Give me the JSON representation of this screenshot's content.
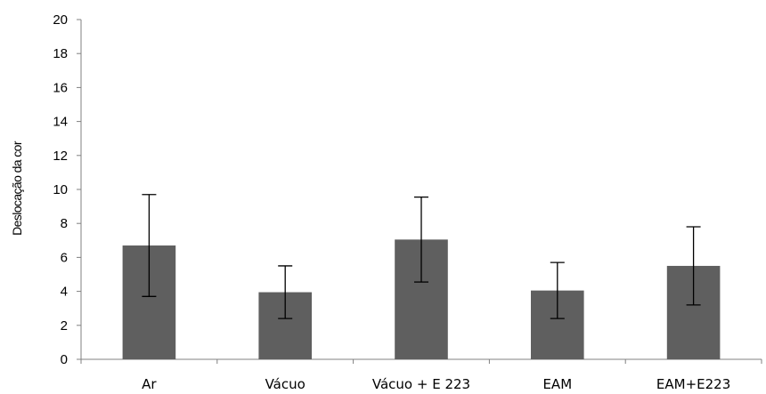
{
  "chart_data": {
    "type": "bar",
    "title": "",
    "xlabel": "",
    "ylabel": "Deslocação da cor",
    "ylim": [
      0,
      20
    ],
    "yticks": [
      0,
      2,
      4,
      6,
      8,
      10,
      12,
      14,
      16,
      18,
      20
    ],
    "grid": false,
    "legend": "none",
    "bar_color": "#5f5f5f",
    "axis_color": "#808080",
    "categories": [
      "Ar",
      "Vácuo",
      "Vácuo + E 223",
      "EAM",
      "EAM+E223"
    ],
    "values": [
      6.7,
      3.95,
      7.05,
      4.05,
      5.5
    ],
    "error": [
      3.0,
      1.55,
      2.5,
      1.65,
      2.3
    ]
  }
}
